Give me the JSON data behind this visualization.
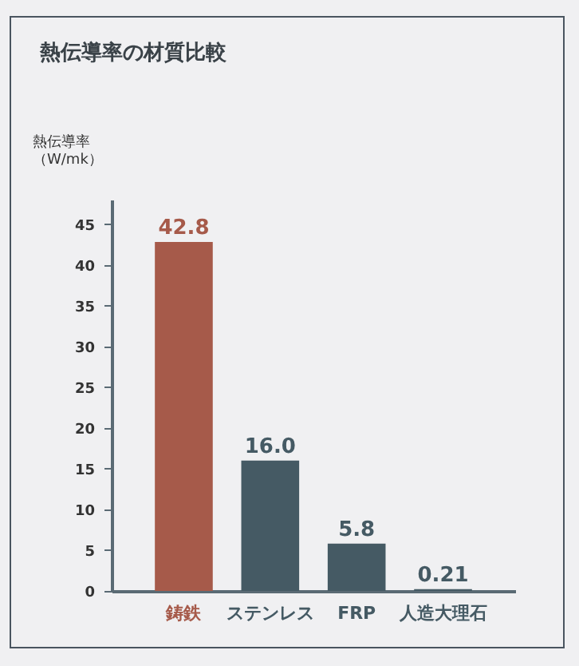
{
  "chart_data": {
    "type": "bar",
    "title": "熱伝導率の材質比較",
    "ylabel": "熱伝導率（W/mk）",
    "categories": [
      "鋳鉄",
      "ステンレス",
      "FRP",
      "人造大理石"
    ],
    "values": [
      42.8,
      16.0,
      5.8,
      0.21
    ],
    "colors": [
      "#a65a4a",
      "#455a64",
      "#455a64",
      "#455a64"
    ],
    "value_labels": [
      "42.8",
      "16.0",
      "5.8",
      "0.21"
    ],
    "ylim": [
      0,
      48
    ],
    "yticks": [
      0,
      5,
      10,
      15,
      20,
      25,
      30,
      35,
      40,
      45
    ],
    "grid": false
  }
}
